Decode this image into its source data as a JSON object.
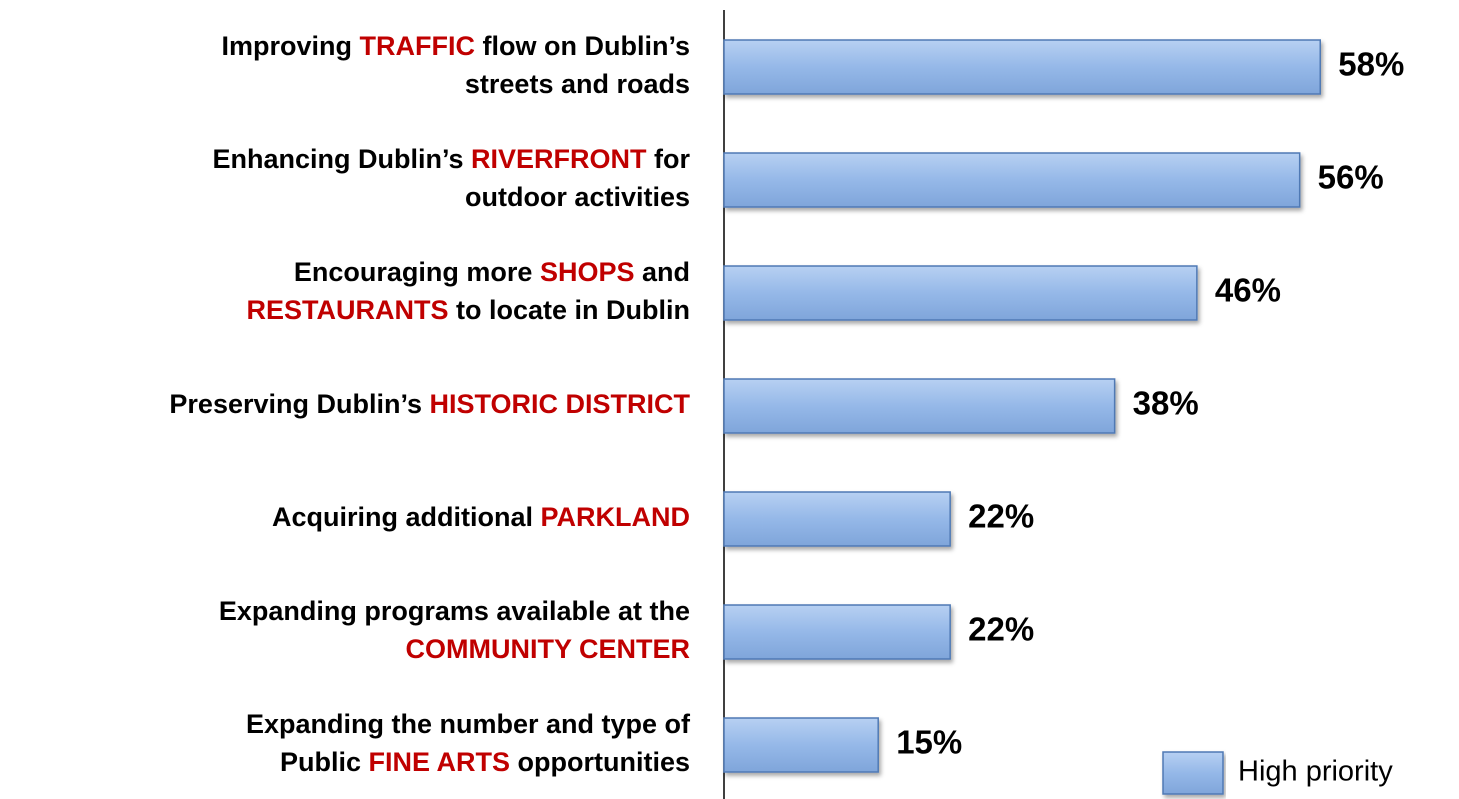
{
  "chart_data": {
    "type": "bar",
    "orientation": "horizontal",
    "highlight_color": "#c00000",
    "categories": [
      [
        [
          "Improving ",
          {
            "text": "TRAFFIC",
            "highlight": true
          },
          " flow on Dublin’s"
        ],
        [
          "streets and roads"
        ]
      ],
      [
        [
          "Enhancing Dublin’s ",
          {
            "text": "RIVERFRONT",
            "highlight": true
          },
          " for"
        ],
        [
          "outdoor activities"
        ]
      ],
      [
        [
          "Encouraging more ",
          {
            "text": "SHOPS",
            "highlight": true
          },
          " and"
        ],
        [
          {
            "text": "RESTAURANTS",
            "highlight": true
          },
          " to locate in Dublin"
        ]
      ],
      [
        [
          "Preserving Dublin’s ",
          {
            "text": "HISTORIC DISTRICT",
            "highlight": true
          }
        ]
      ],
      [
        [
          "Acquiring additional ",
          {
            "text": "PARKLAND",
            "highlight": true
          }
        ]
      ],
      [
        [
          "Expanding programs available at the"
        ],
        [
          {
            "text": "COMMUNITY CENTER",
            "highlight": true
          }
        ]
      ],
      [
        [
          "Expanding the number and type of"
        ],
        [
          "Public ",
          {
            "text": "FINE ARTS",
            "highlight": true
          },
          " opportunities"
        ]
      ]
    ],
    "series": [
      {
        "name": "High priority",
        "color": "#95b8e8",
        "values": [
          58,
          56,
          46,
          38,
          22,
          22,
          15
        ],
        "value_labels": [
          "58%",
          "56%",
          "46%",
          "38%",
          "22%",
          "22%",
          "15%"
        ]
      }
    ],
    "legend": "bottom-right"
  }
}
